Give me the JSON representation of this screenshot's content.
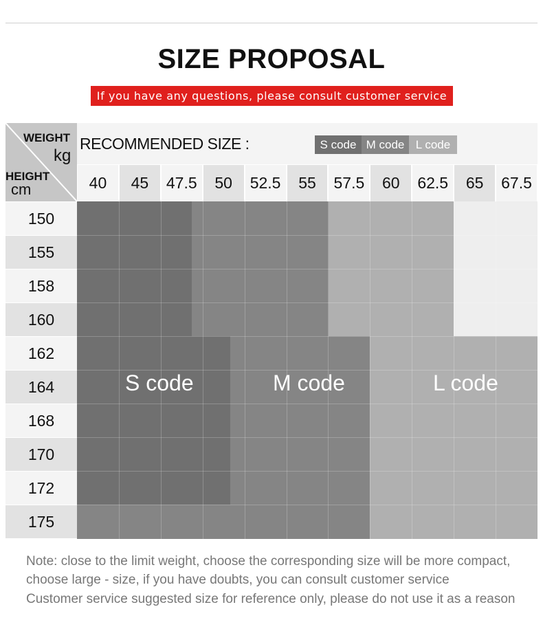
{
  "title": "SIZE PROPOSAL",
  "banner": "If you have any questions, please consult customer service",
  "corner": {
    "weight": "WEIGHT",
    "weight_unit": "kg",
    "height": "HEIGHT",
    "height_unit": "cm"
  },
  "recommended_label": "RECOMMENDED SIZE :",
  "legend": [
    "S code",
    "M code",
    "L code"
  ],
  "weights": [
    "40",
    "45",
    "47.5",
    "50",
    "52.5",
    "55",
    "57.5",
    "60",
    "62.5",
    "65",
    "67.5"
  ],
  "heights": [
    "150",
    "155",
    "158",
    "160",
    "162",
    "164",
    "168",
    "170",
    "172",
    "175"
  ],
  "zones": {
    "s": "S code",
    "m": "M code",
    "l": "L code"
  },
  "colors": {
    "s": "#707070",
    "m": "#858585",
    "l": "#b0b0b0",
    "xl": "#eeeeee",
    "banner": "#e0201d"
  },
  "notes": [
    "Note: close to the limit weight, choose the corresponding size will be more compact,",
    "choose large - size, if you have doubts, you can consult customer service",
    "Customer service suggested size for reference only, please do not use it as a reason"
  ]
}
